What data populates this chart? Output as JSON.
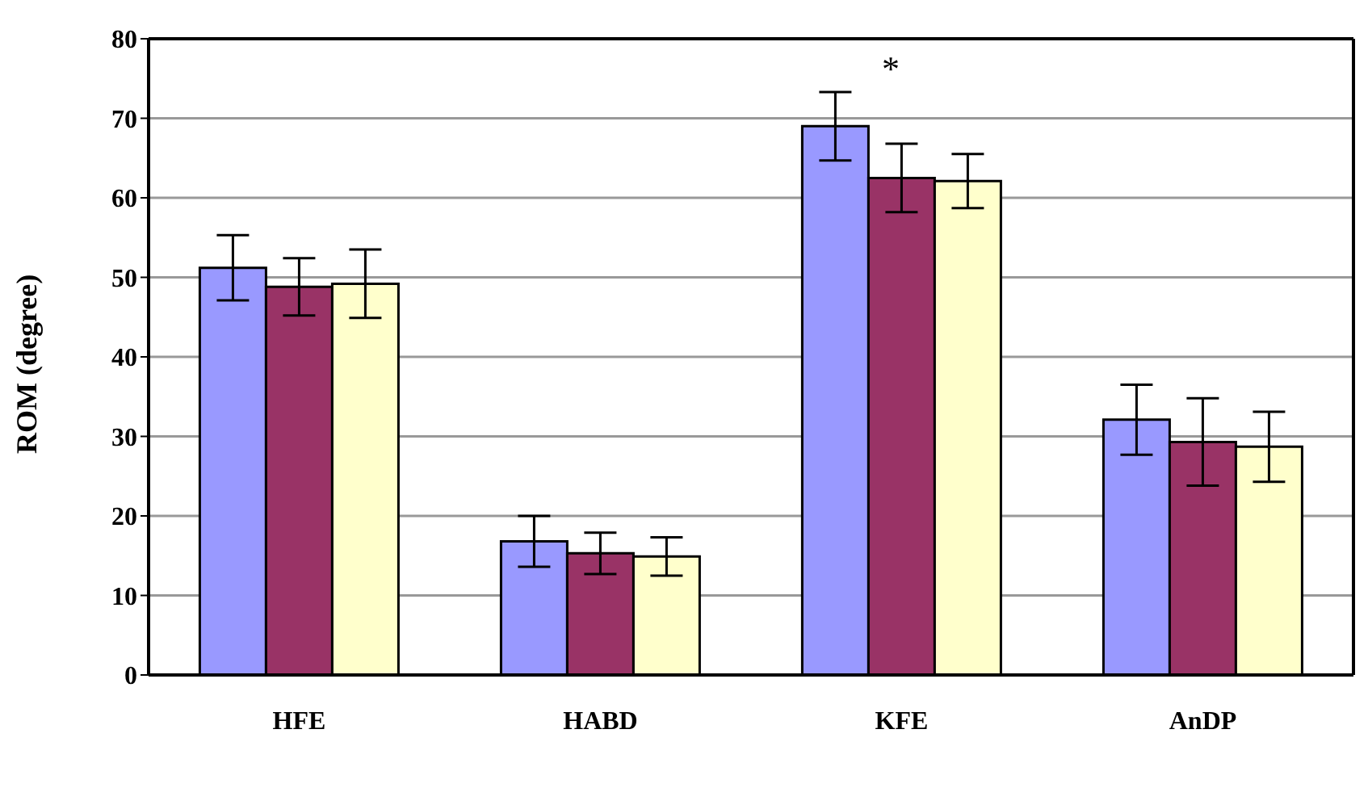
{
  "chart_data": {
    "type": "bar",
    "ylabel": "ROM (degree)",
    "categories": [
      "HFE",
      "HABD",
      "KFE",
      "AnDP"
    ],
    "series": [
      {
        "color": "#9999ff",
        "values": [
          51.2,
          16.8,
          69.0,
          32.1
        ],
        "errors": [
          4.1,
          3.2,
          4.3,
          4.4
        ]
      },
      {
        "color": "#993366",
        "values": [
          48.8,
          15.3,
          62.5,
          29.3
        ],
        "errors": [
          3.6,
          2.6,
          4.3,
          5.5
        ]
      },
      {
        "color": "#ffffcc",
        "values": [
          49.2,
          14.9,
          62.1,
          28.7
        ],
        "errors": [
          4.3,
          2.4,
          3.4,
          4.4
        ]
      }
    ],
    "ylim": [
      0,
      80
    ],
    "yticks": [
      0,
      10,
      20,
      30,
      40,
      50,
      60,
      70,
      80
    ],
    "grid": "y",
    "legend": false,
    "annotations": [
      "*"
    ]
  }
}
